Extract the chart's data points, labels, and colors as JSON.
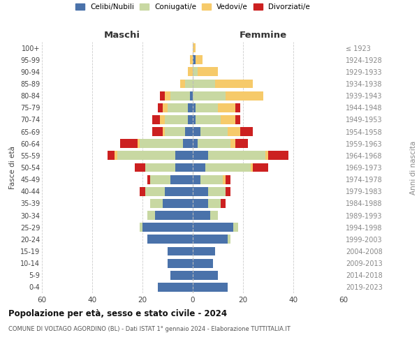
{
  "age_groups": [
    "0-4",
    "5-9",
    "10-14",
    "15-19",
    "20-24",
    "25-29",
    "30-34",
    "35-39",
    "40-44",
    "45-49",
    "50-54",
    "55-59",
    "60-64",
    "65-69",
    "70-74",
    "75-79",
    "80-84",
    "85-89",
    "90-94",
    "95-99",
    "100+"
  ],
  "birth_years": [
    "2019-2023",
    "2014-2018",
    "2009-2013",
    "2004-2008",
    "1999-2003",
    "1994-1998",
    "1989-1993",
    "1984-1988",
    "1979-1983",
    "1974-1978",
    "1969-1973",
    "1964-1968",
    "1959-1963",
    "1954-1958",
    "1949-1953",
    "1944-1948",
    "1939-1943",
    "1934-1938",
    "1929-1933",
    "1924-1928",
    "≤ 1923"
  ],
  "colors": {
    "celibi": "#4a72aa",
    "coniugati": "#c8d8a2",
    "vedovi": "#f6ca6a",
    "divorziati": "#cc2020"
  },
  "legend_labels": [
    "Celibi/Nubili",
    "Coniugati/e",
    "Vedovi/e",
    "Divorziati/e"
  ],
  "maschi": {
    "celibi": [
      14,
      9,
      10,
      10,
      18,
      20,
      15,
      12,
      11,
      9,
      7,
      7,
      4,
      3,
      2,
      2,
      1,
      0,
      0,
      0,
      0
    ],
    "coniugati": [
      0,
      0,
      0,
      0,
      0,
      1,
      3,
      5,
      8,
      8,
      12,
      23,
      17,
      8,
      9,
      8,
      8,
      3,
      0,
      0,
      0
    ],
    "vedovi": [
      0,
      0,
      0,
      0,
      0,
      0,
      0,
      0,
      0,
      0,
      0,
      1,
      1,
      1,
      2,
      2,
      2,
      2,
      2,
      1,
      0
    ],
    "divorziati": [
      0,
      0,
      0,
      0,
      0,
      0,
      0,
      0,
      2,
      1,
      4,
      3,
      7,
      4,
      3,
      2,
      2,
      0,
      0,
      0,
      0
    ]
  },
  "femmine": {
    "nubili": [
      14,
      10,
      8,
      9,
      14,
      16,
      7,
      6,
      6,
      3,
      5,
      6,
      2,
      3,
      1,
      1,
      0,
      0,
      0,
      1,
      0
    ],
    "coniugate": [
      0,
      0,
      0,
      0,
      1,
      2,
      3,
      5,
      7,
      9,
      18,
      23,
      13,
      11,
      10,
      9,
      13,
      9,
      2,
      0,
      0
    ],
    "vedove": [
      0,
      0,
      0,
      0,
      0,
      0,
      0,
      0,
      0,
      1,
      1,
      1,
      2,
      5,
      6,
      7,
      15,
      15,
      8,
      3,
      1
    ],
    "divorziate": [
      0,
      0,
      0,
      0,
      0,
      0,
      0,
      2,
      2,
      2,
      6,
      8,
      5,
      5,
      2,
      2,
      0,
      0,
      0,
      0,
      0
    ]
  },
  "xlim": 60,
  "title1": "Popolazione per età, sesso e stato civile - 2024",
  "title2": "COMUNE DI VOLTAGO AGORDINO (BL) - Dati ISTAT 1° gennaio 2024 - Elaborazione TUTTITALIA.IT",
  "xlabel_maschi": "Maschi",
  "xlabel_femmine": "Femmine",
  "ylabel_left": "Fasce di età",
  "ylabel_right": "Anni di nascita"
}
